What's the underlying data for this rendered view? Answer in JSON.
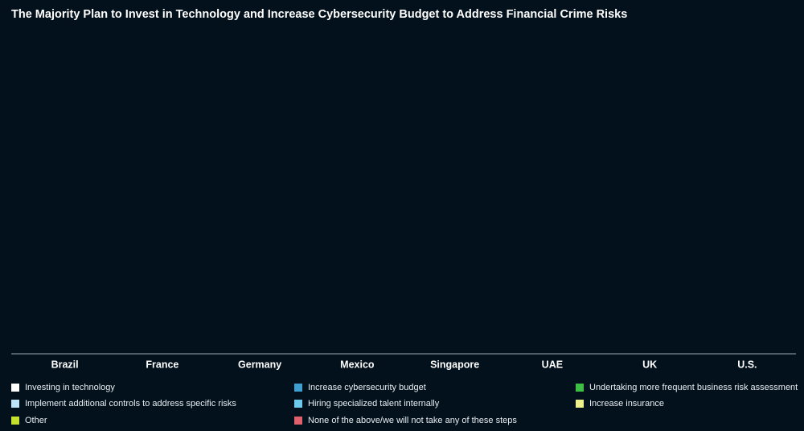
{
  "chart_data": {
    "type": "bar",
    "title": "The Majority Plan to Invest in Technology and Increase Cybersecurity Budget to Address Financial Crime Risks",
    "categories": [
      "Brazil",
      "France",
      "Germany",
      "Mexico",
      "Singapore",
      "UAE",
      "UK",
      "U.S."
    ],
    "series": [
      {
        "name": "Investing in technology",
        "color": "#ffffff"
      },
      {
        "name": "Increase cybersecurity budget",
        "color": "#3f9fd0"
      },
      {
        "name": "Undertaking more frequent business risk assessment",
        "color": "#3dbf45"
      },
      {
        "name": "Implement additional controls to address specific risks",
        "color": "#bde4f6"
      },
      {
        "name": "Hiring specialized talent internally",
        "color": "#6ccbea"
      },
      {
        "name": "Increase insurance",
        "color": "#eef08c"
      },
      {
        "name": "Other",
        "color": "#c3e02f"
      },
      {
        "name": "None of the above/we will not take any of these steps",
        "color": "#e0606e"
      }
    ]
  }
}
